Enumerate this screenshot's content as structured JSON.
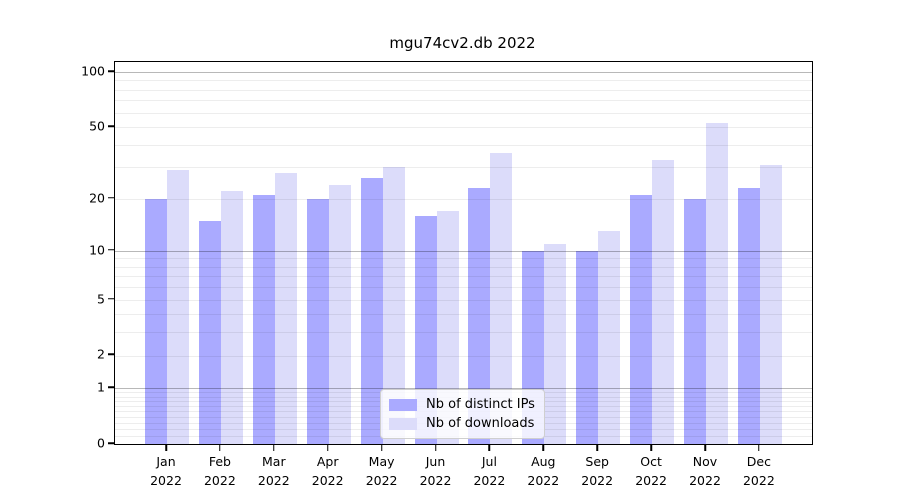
{
  "chart_data": {
    "type": "bar",
    "title": "mgu74cv2.db 2022",
    "year": "2022",
    "months": [
      "Jan",
      "Feb",
      "Mar",
      "Apr",
      "May",
      "Jun",
      "Jul",
      "Aug",
      "Sep",
      "Oct",
      "Nov",
      "Dec"
    ],
    "categories": [
      "Jan 2022",
      "Feb 2022",
      "Mar 2022",
      "Apr 2022",
      "May 2022",
      "Jun 2022",
      "Jul 2022",
      "Aug 2022",
      "Sep 2022",
      "Oct 2022",
      "Nov 2022",
      "Dec 2022"
    ],
    "series": [
      {
        "name": "Nb of distinct IPs",
        "color": "#aaaaff",
        "values": [
          20,
          15,
          21,
          20,
          26,
          16,
          23,
          10,
          10,
          21,
          20,
          23
        ]
      },
      {
        "name": "Nb of downloads",
        "color": "#dcdcfa",
        "values": [
          29,
          22,
          28,
          24,
          30,
          17,
          36,
          11,
          13,
          33,
          53,
          31
        ]
      }
    ],
    "xlabel": "",
    "ylabel": "",
    "y_scale": "log1p",
    "y_tick_labels": [
      "0",
      "1",
      "2",
      "5",
      "10",
      "20",
      "50",
      "100"
    ],
    "y_ticks": [
      0,
      1,
      2,
      5,
      10,
      20,
      50,
      100
    ],
    "major_gridlines": [
      1,
      10,
      100
    ],
    "minor_gridlines": [
      0.1,
      0.2,
      0.3,
      0.4,
      0.5,
      0.6,
      0.7,
      0.8,
      0.9,
      2,
      3,
      4,
      5,
      6,
      7,
      8,
      9,
      20,
      30,
      40,
      50,
      60,
      70,
      80,
      90
    ],
    "ylim": [
      0,
      113
    ],
    "grid": true,
    "legend_position": "lower center"
  },
  "colors": {
    "distinct_ips": "#aaaaff",
    "downloads": "#dcdcfa",
    "spine": "#000000",
    "background": "#ffffff"
  }
}
